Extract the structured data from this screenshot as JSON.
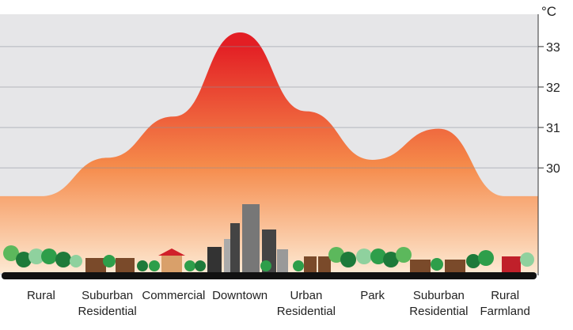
{
  "chart_data": {
    "type": "area",
    "y_axis_label": "°C",
    "categories": [
      "Rural",
      "Suburban Residential",
      "Commercial",
      "Downtown",
      "Urban Residential",
      "Park",
      "Suburban Residential",
      "Rural Farmland"
    ],
    "values": [
      29.3,
      30.25,
      31.27,
      33.35,
      31.4,
      30.2,
      30.97,
      29.3
    ],
    "ylim": [
      27.4,
      33.8
    ],
    "yticks": [
      30,
      31,
      32,
      33
    ],
    "grid": true,
    "color_top": "#e31e24",
    "color_bottom": "#fde9d2"
  }
}
